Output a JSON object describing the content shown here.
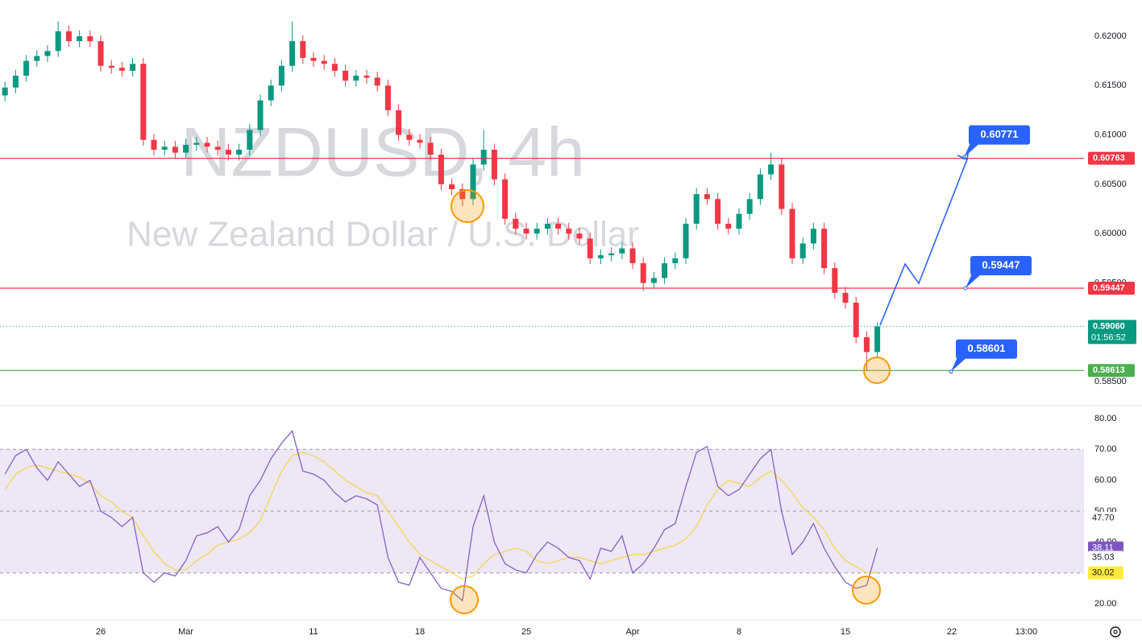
{
  "chart_data": [
    {
      "type": "candlestick",
      "watermark_title": "NZDUSD, 4h",
      "watermark_subtitle": "New Zealand Dollar / U.S. Dollar",
      "up_color": "#089981",
      "down_color": "#f23645",
      "ylim": [
        0.58264,
        0.62367
      ],
      "yticks": [
        {
          "value": 0.585,
          "label": "0.58500"
        },
        {
          "value": 0.59,
          "label": "0.59000"
        },
        {
          "value": 0.595,
          "label": "0.59500"
        },
        {
          "value": 0.6,
          "label": "0.60000"
        },
        {
          "value": 0.605,
          "label": "0.60500"
        },
        {
          "value": 0.61,
          "label": "0.61000"
        },
        {
          "value": 0.615,
          "label": "0.61500"
        },
        {
          "value": 0.62,
          "label": "0.62000"
        }
      ],
      "grid": false,
      "categories": [
        null,
        null,
        null,
        null,
        null,
        null,
        null,
        null,
        null,
        "26",
        null,
        null,
        null,
        null,
        null,
        null,
        null,
        "Mar",
        null,
        null,
        null,
        null,
        null,
        null,
        null,
        null,
        null,
        null,
        null,
        "11",
        null,
        null,
        null,
        null,
        null,
        null,
        null,
        null,
        null,
        "18",
        null,
        null,
        null,
        null,
        null,
        null,
        null,
        null,
        null,
        "25",
        null,
        null,
        null,
        null,
        null,
        null,
        null,
        null,
        null,
        "Apr",
        null,
        null,
        null,
        null,
        null,
        null,
        null,
        null,
        null,
        "8",
        null,
        null,
        null,
        null,
        null,
        null,
        null,
        null,
        null,
        "15",
        null,
        null,
        null,
        null,
        null,
        null,
        null,
        null,
        null,
        "22",
        null,
        null,
        null,
        null,
        null,
        null,
        "13:00"
      ],
      "open": [
        0.614,
        0.6148,
        0.616,
        0.6175,
        0.618,
        0.6185,
        0.6205,
        0.6195,
        0.62,
        0.6195,
        0.617,
        0.6168,
        0.6165,
        0.6172,
        0.6095,
        0.6085,
        0.6088,
        0.6082,
        0.609,
        0.6092,
        0.6088,
        0.6085,
        0.608,
        0.6085,
        0.6105,
        0.6135,
        0.615,
        0.617,
        0.6195,
        0.6178,
        0.6175,
        0.6172,
        0.6165,
        0.6155,
        0.616,
        0.6158,
        0.615,
        0.6125,
        0.61,
        0.6095,
        0.6092,
        0.608,
        0.605,
        0.6045,
        0.6035,
        0.607,
        0.6085,
        0.6055,
        0.6015,
        0.6005,
        0.6,
        0.6005,
        0.601,
        0.6005,
        0.6,
        0.5995,
        0.5975,
        0.5978,
        0.598,
        0.5985,
        0.597,
        0.595,
        0.5955,
        0.597,
        0.5975,
        0.601,
        0.604,
        0.6035,
        0.601,
        0.6005,
        0.602,
        0.6035,
        0.606,
        0.607,
        0.6025,
        0.5975,
        0.599,
        0.6005,
        0.5965,
        0.594,
        0.593,
        0.5895,
        0.588,
        null,
        null,
        null,
        null,
        null,
        null,
        null,
        null,
        null,
        null,
        null,
        null,
        null,
        null
      ],
      "high": [
        0.6154,
        0.6166,
        0.6181,
        0.6186,
        0.6191,
        0.6215,
        0.6211,
        0.6206,
        0.6206,
        0.6201,
        0.6176,
        0.6174,
        0.6178,
        0.6178,
        0.6101,
        0.6094,
        0.6094,
        0.6096,
        0.6098,
        0.6098,
        0.6094,
        0.6091,
        0.6091,
        0.6111,
        0.6141,
        0.6156,
        0.6176,
        0.6215,
        0.6201,
        0.6184,
        0.6181,
        0.6178,
        0.6171,
        0.6166,
        0.6166,
        0.6164,
        0.6156,
        0.6131,
        0.6106,
        0.6101,
        0.6098,
        0.6086,
        0.6056,
        0.6051,
        0.6076,
        0.6105,
        0.6091,
        0.6061,
        0.6021,
        0.6011,
        0.6011,
        0.6016,
        0.6016,
        0.6011,
        0.6006,
        0.6001,
        0.5984,
        0.5986,
        0.5991,
        0.5991,
        0.5976,
        0.5961,
        0.5976,
        0.5981,
        0.6016,
        0.6046,
        0.6046,
        0.6041,
        0.6016,
        0.6026,
        0.6041,
        0.6066,
        0.6082,
        0.6076,
        0.6031,
        0.5996,
        0.6011,
        0.6011,
        0.5971,
        0.5946,
        0.5936,
        0.5901,
        0.591,
        null,
        null,
        null,
        null,
        null,
        null,
        null,
        null,
        null,
        null,
        null,
        null,
        null,
        null
      ],
      "low": [
        0.6134,
        0.6142,
        0.6154,
        0.6169,
        0.6174,
        0.6179,
        0.6189,
        0.6189,
        0.6189,
        0.6164,
        0.6162,
        0.6159,
        0.6159,
        0.6089,
        0.6079,
        0.6079,
        0.6076,
        0.6076,
        0.6084,
        0.6082,
        0.6079,
        0.6074,
        0.6074,
        0.6079,
        0.6099,
        0.6129,
        0.6144,
        0.6164,
        0.6172,
        0.6169,
        0.6166,
        0.6159,
        0.6149,
        0.6149,
        0.6152,
        0.6144,
        0.6119,
        0.6094,
        0.6089,
        0.6086,
        0.6074,
        0.6044,
        0.6039,
        0.6028,
        0.6029,
        0.6064,
        0.6049,
        0.6009,
        0.5999,
        0.5994,
        0.5994,
        0.5999,
        0.5999,
        0.5994,
        0.5989,
        0.5969,
        0.5969,
        0.5972,
        0.5974,
        0.5964,
        0.5942,
        0.5944,
        0.5949,
        0.5964,
        0.5969,
        0.6004,
        0.6029,
        0.6004,
        0.5999,
        0.5999,
        0.6014,
        0.6029,
        0.6054,
        0.6019,
        0.5969,
        0.5969,
        0.5984,
        0.5959,
        0.5934,
        0.5924,
        0.5889,
        0.5861,
        0.5874,
        null,
        null,
        null,
        null,
        null,
        null,
        null,
        null,
        null,
        null,
        null,
        null,
        null,
        null
      ],
      "close": [
        0.6148,
        0.616,
        0.6175,
        0.618,
        0.6185,
        0.6205,
        0.6195,
        0.62,
        0.6195,
        0.617,
        0.6168,
        0.6165,
        0.6172,
        0.6095,
        0.6085,
        0.6088,
        0.6082,
        0.609,
        0.6092,
        0.6088,
        0.6085,
        0.608,
        0.6085,
        0.6105,
        0.6135,
        0.615,
        0.617,
        0.6195,
        0.6178,
        0.6175,
        0.6172,
        0.6165,
        0.6155,
        0.616,
        0.6158,
        0.615,
        0.6125,
        0.61,
        0.6095,
        0.6092,
        0.608,
        0.605,
        0.6045,
        0.6035,
        0.607,
        0.6085,
        0.6055,
        0.6015,
        0.6005,
        0.6,
        0.6005,
        0.601,
        0.6005,
        0.6,
        0.5995,
        0.5975,
        0.5978,
        0.598,
        0.5985,
        0.597,
        0.595,
        0.5955,
        0.597,
        0.5975,
        0.601,
        0.604,
        0.6035,
        0.601,
        0.6005,
        0.602,
        0.6035,
        0.606,
        0.607,
        0.6025,
        0.5975,
        0.599,
        0.6005,
        0.5965,
        0.594,
        0.593,
        0.5895,
        0.588,
        0.5906,
        null,
        null,
        null,
        null,
        null,
        null,
        null,
        null,
        null,
        null,
        null,
        null,
        null,
        null
      ],
      "lines": [
        {
          "value": 0.60763,
          "label": "0.60763",
          "color": "#f23645"
        },
        {
          "value": 0.59447,
          "label": "0.59447",
          "color": "#f23645"
        },
        {
          "value": 0.58613,
          "label": "0.58613",
          "color": "#4caf50"
        }
      ],
      "callouts": [
        {
          "value": 0.60771,
          "label": "0.60771"
        },
        {
          "value": 0.59447,
          "label": "0.59447"
        },
        {
          "value": 0.58601,
          "label": "0.58601"
        }
      ],
      "callout_color": "#2962ff",
      "last": {
        "value": 0.5906,
        "label": "0.59060",
        "countdown": "01:56:52",
        "color": "#089981"
      }
    },
    {
      "type": "line",
      "ylim": [
        14.8,
        83.9
      ],
      "yticks": [
        {
          "value": 20,
          "label": "20.00"
        },
        {
          "value": 30,
          "label": "30.00"
        },
        {
          "value": 40,
          "label": "40.00"
        },
        {
          "value": 50,
          "label": "50.00"
        },
        {
          "value": 60,
          "label": "60.00"
        },
        {
          "value": 70,
          "label": "70.00"
        },
        {
          "value": 80,
          "label": "80.00"
        }
      ],
      "hlines": [
        70,
        50,
        30
      ],
      "band_color": "#ede7f6",
      "series": [
        {
          "color": "#7e57c2",
          "values": [
            62,
            68,
            70,
            64,
            60,
            66,
            62,
            58,
            60,
            50,
            48,
            45,
            48,
            30,
            27,
            30,
            29,
            34,
            42,
            43,
            45,
            40,
            44,
            55,
            60,
            67,
            72,
            76,
            63,
            62,
            60,
            56,
            53,
            55,
            54,
            52,
            35,
            27,
            26,
            35,
            30,
            25,
            24,
            21,
            45,
            55,
            40,
            33,
            31,
            30,
            36,
            40,
            38,
            35,
            34,
            28,
            38,
            37,
            42,
            30,
            33,
            38,
            44,
            46,
            58,
            69,
            71,
            58,
            55,
            57,
            62,
            67,
            70,
            50,
            36,
            40,
            46,
            38,
            32,
            27,
            25,
            26,
            38.11,
            null,
            null,
            null,
            null,
            null,
            null,
            null,
            null,
            null,
            null,
            null,
            null,
            null,
            null
          ]
        },
        {
          "color": "#f5d54a",
          "values": [
            57,
            62,
            64,
            65,
            64,
            63,
            62,
            61,
            59,
            55,
            53,
            50,
            48,
            42,
            37,
            33,
            31,
            31,
            34,
            36,
            39,
            40,
            41,
            43,
            47,
            55,
            63,
            68,
            69,
            68,
            66,
            63,
            60,
            58,
            56,
            55,
            50,
            45,
            40,
            36,
            34,
            32,
            30,
            28,
            29,
            33,
            36,
            37,
            38,
            37,
            34,
            33,
            34,
            35,
            35,
            34,
            33,
            34,
            35,
            36,
            36,
            37,
            38,
            39,
            41,
            45,
            52,
            57,
            60,
            59,
            58,
            61,
            63,
            60,
            56,
            51,
            48,
            44,
            38,
            34,
            32,
            30,
            30.02,
            null,
            null,
            null,
            null,
            null,
            null,
            null,
            null,
            null,
            null,
            null,
            null,
            null,
            null
          ]
        }
      ],
      "badges": [
        {
          "value": 47.7,
          "label": "47.70",
          "color": "#ffffff"
        },
        {
          "value": 38.11,
          "label": "38.11",
          "color": "#7e57c2"
        },
        {
          "value": 35.03,
          "label": "35.03",
          "color": "#ffffff"
        },
        {
          "value": 30.02,
          "label": "30.02",
          "color": "#ffeb3b"
        }
      ]
    }
  ]
}
